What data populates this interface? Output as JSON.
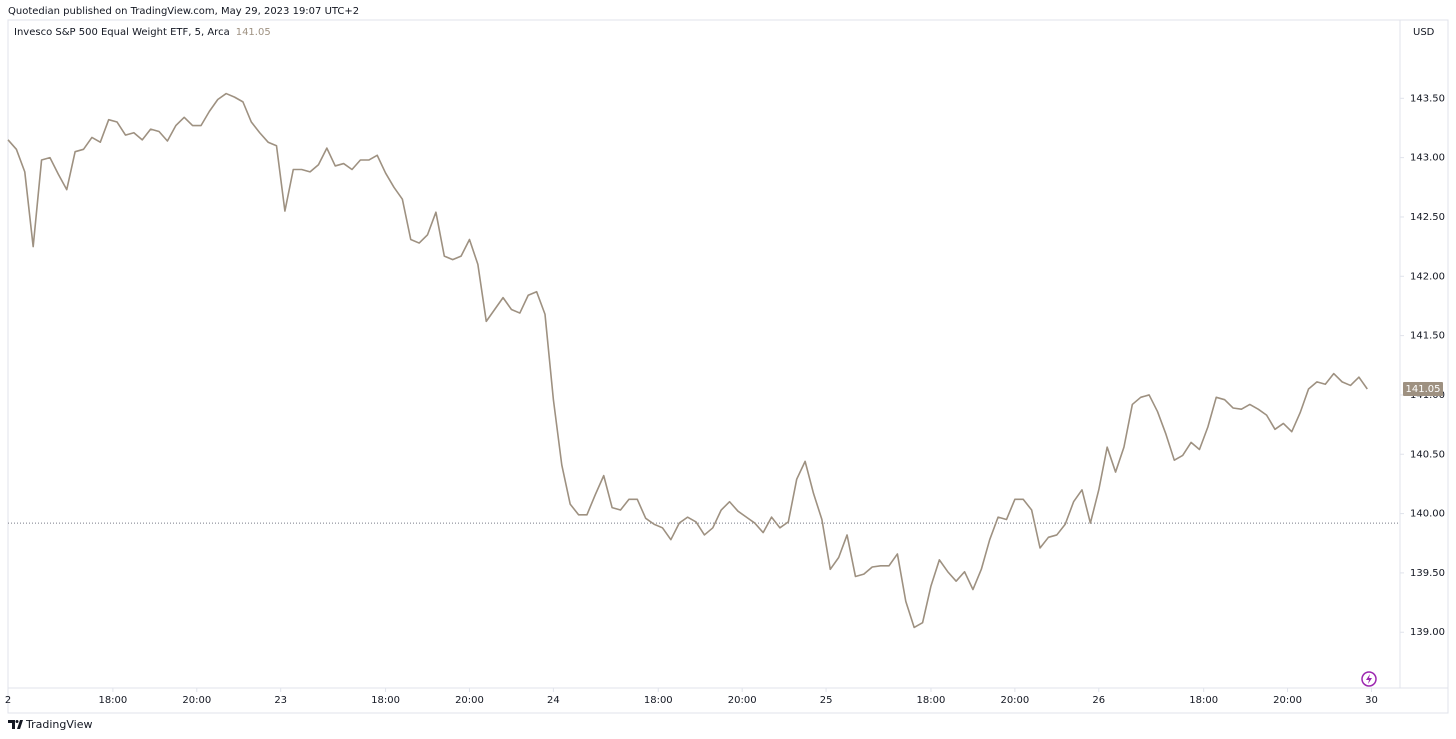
{
  "header": "Quotedian published on TradingView.com, May 29, 2023 19:07 UTC+2",
  "footer": "TradingView",
  "chart_data": {
    "type": "line",
    "legend": "Invesco S&P 500 Equal Weight ETF, 5, Arca",
    "legend_value": "141.05",
    "currency": "USD",
    "color": "#9e9181",
    "xlim": [
      0,
      33.18
    ],
    "ylim": [
      138.53,
      144.16
    ],
    "xticks": [
      {
        "value": 0,
        "label": "2"
      },
      {
        "value": 2.5,
        "label": "18:00"
      },
      {
        "value": 4.5,
        "label": "20:00"
      },
      {
        "value": 6.5,
        "label": "23"
      },
      {
        "value": 9,
        "label": "18:00"
      },
      {
        "value": 11,
        "label": "20:00"
      },
      {
        "value": 13,
        "label": "24"
      },
      {
        "value": 15.5,
        "label": "18:00"
      },
      {
        "value": 17.5,
        "label": "20:00"
      },
      {
        "value": 19.5,
        "label": "25"
      },
      {
        "value": 22,
        "label": "18:00"
      },
      {
        "value": 24,
        "label": "20:00"
      },
      {
        "value": 26,
        "label": "26"
      },
      {
        "value": 28.5,
        "label": "18:00"
      },
      {
        "value": 30.5,
        "label": "20:00"
      },
      {
        "value": 32.5,
        "label": "30"
      }
    ],
    "yticks": [
      {
        "value": 139,
        "label": "139.00"
      },
      {
        "value": 139.5,
        "label": "139.50"
      },
      {
        "value": 140,
        "label": "140.00"
      },
      {
        "value": 140.5,
        "label": "140.50"
      },
      {
        "value": 141,
        "label": "141.00"
      },
      {
        "value": 141.5,
        "label": "141.50"
      },
      {
        "value": 142,
        "label": "142.00"
      },
      {
        "value": 142.5,
        "label": "142.50"
      },
      {
        "value": 143,
        "label": "143.00"
      },
      {
        "value": 143.5,
        "label": "143.50"
      }
    ],
    "ref_line": 139.92,
    "last_value": 141.05,
    "x": [
      0,
      0.2,
      0.4,
      0.6,
      0.8,
      1,
      1.2,
      1.4,
      1.6,
      1.8,
      2,
      2.2,
      2.4,
      2.6,
      2.8,
      3,
      3.2,
      3.4,
      3.6,
      3.8,
      4,
      4.2,
      4.4,
      4.6,
      4.8,
      5,
      5.2,
      5.4,
      5.6,
      5.8,
      6,
      6.2,
      6.4,
      6.6,
      6.8,
      7,
      7.2,
      7.4,
      7.6,
      7.8,
      8,
      8.2,
      8.4,
      8.6,
      8.8,
      9,
      9.2,
      9.4,
      9.6,
      9.8,
      10,
      10.2,
      10.4,
      10.6,
      10.8,
      11,
      11.2,
      11.4,
      11.6,
      11.8,
      12,
      12.2,
      12.4,
      12.6,
      12.8,
      13,
      13.2,
      13.4,
      13.6,
      13.8,
      14,
      14.2,
      14.4,
      14.6,
      14.8,
      15,
      15.2,
      15.4,
      15.6,
      15.8,
      16,
      16.2,
      16.4,
      16.6,
      16.8,
      17,
      17.2,
      17.4,
      17.6,
      17.8,
      18,
      18.2,
      18.4,
      18.6,
      18.8,
      19,
      19.2,
      19.4,
      19.6,
      19.8,
      20,
      20.2,
      20.4,
      20.6,
      20.8,
      21,
      21.2,
      21.4,
      21.6,
      21.8,
      22,
      22.2,
      22.4,
      22.6,
      22.8,
      23,
      23.2,
      23.4,
      23.6,
      23.8,
      24,
      24.2,
      24.4,
      24.6,
      24.8,
      25,
      25.2,
      25.4,
      25.6,
      25.8,
      26,
      26.2,
      26.4,
      26.6,
      26.8,
      27,
      27.2,
      27.4,
      27.6,
      27.8,
      28,
      28.2,
      28.4,
      28.6,
      28.8,
      29,
      29.2,
      29.4,
      29.6,
      29.8,
      30,
      30.2,
      30.4,
      30.6,
      30.8,
      31,
      31.2,
      31.4,
      31.6,
      31.8,
      32,
      32.2,
      32.4
    ],
    "values": [
      143.15,
      143.07,
      142.88,
      142.25,
      142.98,
      143.0,
      142.86,
      142.73,
      143.05,
      143.07,
      143.17,
      143.13,
      143.32,
      143.3,
      143.19,
      143.21,
      143.15,
      143.24,
      143.22,
      143.14,
      143.27,
      143.34,
      143.27,
      143.27,
      143.39,
      143.49,
      143.54,
      143.51,
      143.47,
      143.3,
      143.21,
      143.13,
      143.1,
      142.55,
      142.9,
      142.9,
      142.88,
      142.94,
      143.08,
      142.93,
      142.95,
      142.9,
      142.98,
      142.98,
      143.02,
      142.87,
      142.75,
      142.65,
      142.31,
      142.28,
      142.35,
      142.54,
      142.17,
      142.14,
      142.17,
      142.31,
      142.1,
      141.62,
      141.72,
      141.82,
      141.72,
      141.69,
      141.84,
      141.87,
      141.68,
      140.96,
      140.41,
      140.08,
      139.99,
      139.99,
      140.16,
      140.32,
      140.05,
      140.03,
      140.12,
      140.12,
      139.96,
      139.91,
      139.88,
      139.78,
      139.92,
      139.97,
      139.93,
      139.82,
      139.88,
      140.03,
      140.1,
      140.02,
      139.97,
      139.92,
      139.84,
      139.97,
      139.88,
      139.93,
      140.29,
      140.44,
      140.17,
      139.95,
      139.53,
      139.63,
      139.82,
      139.47,
      139.49,
      139.55,
      139.56,
      139.56,
      139.66,
      139.26,
      139.04,
      139.08,
      139.39,
      139.61,
      139.51,
      139.43,
      139.51,
      139.36,
      139.53,
      139.78,
      139.97,
      139.95,
      140.12,
      140.12,
      140.03,
      139.71,
      139.8,
      139.82,
      139.91,
      140.1,
      140.2,
      139.92,
      140.2,
      140.56,
      140.35,
      140.56,
      140.92,
      140.98,
      141.0,
      140.86,
      140.67,
      140.45,
      140.49,
      140.6,
      140.54,
      140.73,
      140.98,
      140.96,
      140.89,
      140.88,
      140.92,
      140.88,
      140.83,
      140.71,
      140.76,
      140.69,
      140.85,
      141.05,
      141.11,
      141.09,
      141.18,
      141.11,
      141.08,
      141.15,
      141.05
    ]
  }
}
